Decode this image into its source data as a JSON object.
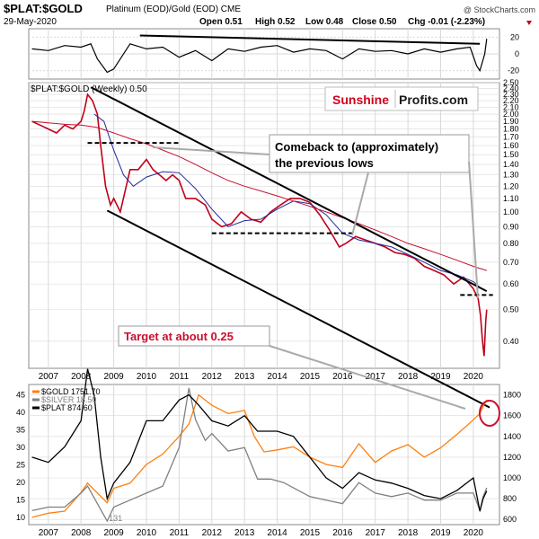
{
  "header": {
    "symbol": "$PLAT:$GOLD",
    "description": "Platinum (EOD)/Gold (EOD) CME",
    "date": "29-May-2020",
    "open": "Open 0.51",
    "high": "High 0.52",
    "low": "Low 0.48",
    "close": "Close 0.50",
    "chg": "Chg -0.01 (-2.23%)",
    "watermark": "@ StockCharts.com"
  },
  "annotations": {
    "brand_red": "Sunshine",
    "brand_blue": "Profits.com",
    "comeback_line1": "Comeback to (approximately)",
    "comeback_line2": "the previous lows",
    "target": "Target at about 0.25"
  },
  "colors": {
    "ratio": "#c0001a",
    "ma_short": "#1f2a9c",
    "ma_long": "#c8102e",
    "gold": "#ff7f0e",
    "silver": "#808080",
    "plat": "#000000",
    "brand_red": "#d0021b",
    "brand_blue": "#1a1a1a",
    "grid": "#d9d9d9"
  },
  "chart_data": [
    {
      "type": "line",
      "panel": "indicator",
      "ylim": [
        -30,
        30
      ],
      "yticks": [
        "20",
        "0",
        "-20"
      ],
      "guide_values": [
        20,
        0,
        -20
      ],
      "x": [
        2006.5,
        2007,
        2007.5,
        2008,
        2008.3,
        2008.5,
        2008.8,
        2009,
        2009.5,
        2010,
        2010.5,
        2011,
        2011.5,
        2012,
        2012.5,
        2013,
        2013.5,
        2014,
        2014.5,
        2015,
        2015.5,
        2016,
        2016.5,
        2017,
        2017.5,
        2018,
        2018.5,
        2019,
        2019.5,
        2019.9,
        2020.1,
        2020.2,
        2020.35,
        2020.41
      ],
      "values": [
        6,
        4,
        10,
        8,
        12,
        -6,
        -22,
        -18,
        12,
        6,
        8,
        -4,
        4,
        -8,
        6,
        3,
        8,
        10,
        2,
        6,
        4,
        -6,
        6,
        3,
        4,
        0,
        6,
        2,
        6,
        8,
        -14,
        -20,
        0,
        18
      ]
    },
    {
      "type": "line",
      "panel": "main",
      "title": "$PLAT:$GOLD (Weekly) 0.50",
      "scale": "log",
      "ylim": [
        0.33,
        2.5
      ],
      "yticks": [
        "2.50",
        "2.40",
        "2.30",
        "2.20",
        "2.10",
        "2.00",
        "1.90",
        "1.80",
        "1.70",
        "1.60",
        "1.50",
        "1.40",
        "1.30",
        "1.20",
        "1.10",
        "1.00",
        "0.90",
        "0.80",
        "0.70",
        "0.60",
        "0.50",
        "0.40"
      ],
      "ytick_values": [
        2.5,
        2.4,
        2.3,
        2.2,
        2.1,
        2.0,
        1.9,
        1.8,
        1.7,
        1.6,
        1.5,
        1.4,
        1.3,
        1.2,
        1.1,
        1.0,
        0.9,
        0.8,
        0.7,
        0.6,
        0.5,
        0.4
      ],
      "xticks": [
        "2007",
        "2008",
        "2009",
        "2010",
        "2011",
        "2012",
        "2013",
        "2014",
        "2015",
        "2016",
        "2017",
        "2018",
        "2019",
        "2020"
      ],
      "xtick_values": [
        2007,
        2008,
        2009,
        2010,
        2011,
        2012,
        2013,
        2014,
        2015,
        2016,
        2017,
        2018,
        2019,
        2020
      ],
      "xlim": [
        2006.4,
        2020.8
      ],
      "series": [
        {
          "key": "ratio",
          "x": [
            2006.5,
            2006.75,
            2007,
            2007.25,
            2007.5,
            2007.75,
            2008,
            2008.1,
            2008.2,
            2008.35,
            2008.5,
            2008.6,
            2008.75,
            2008.9,
            2009,
            2009.2,
            2009.5,
            2009.75,
            2010,
            2010.2,
            2010.4,
            2010.6,
            2010.8,
            2011,
            2011.2,
            2011.5,
            2011.8,
            2012,
            2012.3,
            2012.6,
            2012.9,
            2013.2,
            2013.5,
            2013.8,
            2014.1,
            2014.4,
            2014.7,
            2015,
            2015.3,
            2015.6,
            2015.9,
            2016.1,
            2016.4,
            2016.7,
            2017,
            2017.3,
            2017.6,
            2017.9,
            2018.2,
            2018.5,
            2018.8,
            2019.1,
            2019.4,
            2019.7,
            2020,
            2020.15,
            2020.22,
            2020.28,
            2020.33,
            2020.38,
            2020.41
          ],
          "values": [
            1.9,
            1.85,
            1.8,
            1.75,
            1.85,
            1.8,
            1.9,
            2.05,
            2.3,
            2.2,
            2.0,
            1.6,
            1.2,
            1.05,
            1.1,
            1.0,
            1.35,
            1.35,
            1.45,
            1.35,
            1.3,
            1.25,
            1.3,
            1.25,
            1.1,
            1.1,
            1.05,
            0.95,
            0.9,
            0.92,
            1.0,
            0.95,
            0.93,
            1.0,
            1.05,
            1.1,
            1.1,
            1.07,
            0.98,
            0.88,
            0.78,
            0.8,
            0.84,
            0.82,
            0.8,
            0.78,
            0.75,
            0.74,
            0.72,
            0.68,
            0.66,
            0.64,
            0.6,
            0.63,
            0.58,
            0.54,
            0.48,
            0.4,
            0.36,
            0.46,
            0.5
          ]
        },
        {
          "key": "ma_short",
          "x": [
            2008.4,
            2008.7,
            2009,
            2009.3,
            2009.6,
            2010,
            2010.5,
            2011,
            2011.5,
            2012,
            2012.5,
            2013,
            2013.5,
            2014,
            2014.5,
            2015,
            2015.5,
            2016,
            2016.5,
            2017,
            2017.5,
            2018,
            2018.5,
            2019,
            2019.5,
            2020,
            2020.25
          ],
          "values": [
            2.0,
            1.9,
            1.55,
            1.3,
            1.2,
            1.28,
            1.33,
            1.32,
            1.18,
            1.02,
            0.9,
            0.94,
            0.95,
            1.02,
            1.08,
            1.06,
            0.98,
            0.86,
            0.82,
            0.8,
            0.78,
            0.74,
            0.7,
            0.66,
            0.64,
            0.61,
            0.58
          ]
        },
        {
          "key": "ma_long",
          "x": [
            2006.5,
            2007,
            2007.5,
            2008,
            2008.5,
            2009,
            2009.5,
            2010,
            2010.5,
            2011,
            2011.5,
            2012,
            2012.5,
            2013,
            2013.5,
            2014,
            2014.5,
            2015,
            2015.5,
            2016,
            2016.5,
            2017,
            2017.5,
            2018,
            2018.5,
            2019,
            2019.5,
            2020,
            2020.41
          ],
          "values": [
            1.9,
            1.88,
            1.86,
            1.85,
            1.82,
            1.75,
            1.68,
            1.62,
            1.55,
            1.48,
            1.4,
            1.32,
            1.25,
            1.2,
            1.16,
            1.12,
            1.08,
            1.04,
            1.0,
            0.96,
            0.92,
            0.88,
            0.84,
            0.8,
            0.77,
            0.74,
            0.71,
            0.68,
            0.66
          ]
        }
      ],
      "trend_lines": [
        {
          "key": "upper_channel",
          "x": [
            2008.3,
            2020.41
          ],
          "values": [
            2.42,
            0.57
          ]
        },
        {
          "key": "lower_channel",
          "x": [
            2008.8,
            2020.5
          ],
          "values": [
            1.01,
            0.25
          ]
        },
        {
          "key": "h_line_1",
          "style": "dashed",
          "x": [
            2008.2,
            2011.0
          ],
          "values": [
            1.63,
            1.63
          ]
        },
        {
          "key": "h_line_2",
          "style": "dashed",
          "x": [
            2012.0,
            2016.4
          ],
          "values": [
            0.86,
            0.86
          ]
        },
        {
          "key": "h_line_3",
          "style": "dashed",
          "x": [
            2019.6,
            2020.6
          ],
          "values": [
            0.555,
            0.555
          ]
        }
      ]
    },
    {
      "type": "line",
      "panel": "lower",
      "left_axis": {
        "scale": "linear",
        "ylim": [
          8,
          48
        ],
        "ticks": [
          "45",
          "40",
          "35",
          "30",
          "25",
          "20",
          "15",
          "10"
        ],
        "tick_values": [
          45,
          40,
          35,
          30,
          25,
          20,
          15,
          10
        ]
      },
      "right_axis": {
        "scale": "linear",
        "ylim": [
          550,
          1900
        ],
        "ticks": [
          "1800",
          "1600",
          "1400",
          "1200",
          "1000",
          "800",
          "600"
        ],
        "tick_values": [
          1800,
          1600,
          1400,
          1200,
          1000,
          800,
          600
        ]
      },
      "xticks": [
        "2007",
        "2008",
        "2009",
        "2010",
        "2011",
        "2012",
        "2013",
        "2014",
        "2015",
        "2016",
        "2017",
        "2018",
        "2019",
        "2020"
      ],
      "xtick_values": [
        2007,
        2008,
        2009,
        2010,
        2011,
        2012,
        2013,
        2014,
        2015,
        2016,
        2017,
        2018,
        2019,
        2020
      ],
      "xlim": [
        2006.4,
        2020.8
      ],
      "annotation_131": "131",
      "annotation_131_x": 2008.85,
      "annotation_131_y": 585,
      "series": [
        {
          "name": "$GOLD 1751.70",
          "key": "gold",
          "axis": "right",
          "x": [
            2006.5,
            2007,
            2007.5,
            2008,
            2008.2,
            2008.8,
            2009,
            2009.5,
            2010,
            2010.5,
            2011,
            2011.3,
            2011.6,
            2012,
            2012.5,
            2013,
            2013.3,
            2013.6,
            2014,
            2014.5,
            2015,
            2015.5,
            2016,
            2016.5,
            2017,
            2017.5,
            2018,
            2018.5,
            2019,
            2019.5,
            2020,
            2020.2,
            2020.3,
            2020.41
          ],
          "values": [
            620,
            660,
            680,
            860,
            950,
            760,
            900,
            950,
            1130,
            1230,
            1400,
            1520,
            1800,
            1700,
            1620,
            1650,
            1400,
            1250,
            1270,
            1300,
            1200,
            1130,
            1100,
            1330,
            1150,
            1260,
            1320,
            1200,
            1290,
            1420,
            1560,
            1620,
            1690,
            1751.7
          ]
        },
        {
          "name": "$SILVER 18.50",
          "key": "silver",
          "axis": "left",
          "x": [
            2006.5,
            2007,
            2007.5,
            2008,
            2008.2,
            2008.8,
            2009,
            2009.5,
            2010,
            2010.5,
            2011,
            2011.3,
            2011.5,
            2011.8,
            2012,
            2012.5,
            2013,
            2013.4,
            2013.8,
            2014.2,
            2014.8,
            2015,
            2015.5,
            2016,
            2016.5,
            2017,
            2017.5,
            2018,
            2018.5,
            2019,
            2019.5,
            2020,
            2020.2,
            2020.3,
            2020.41
          ],
          "values": [
            12,
            13,
            13,
            17,
            19,
            9,
            13,
            15,
            17,
            19,
            30,
            47,
            38,
            32,
            34,
            29,
            30,
            21,
            21,
            20,
            17,
            16,
            15,
            14,
            20,
            17,
            16,
            17,
            15,
            15,
            17,
            17,
            12,
            16,
            18.5
          ]
        },
        {
          "name": "$PLAT 874.60",
          "key": "plat",
          "axis": "right",
          "x": [
            2006.5,
            2007,
            2007.5,
            2008,
            2008.2,
            2008.4,
            2008.6,
            2008.8,
            2009,
            2009.5,
            2010,
            2010.5,
            2011,
            2011.3,
            2011.6,
            2012,
            2012.5,
            2013,
            2013.4,
            2014,
            2014.5,
            2015,
            2015.5,
            2016,
            2016.5,
            2017,
            2017.5,
            2018,
            2018.5,
            2019,
            2019.5,
            2020,
            2020.2,
            2020.3,
            2020.41
          ],
          "values": [
            1200,
            1150,
            1300,
            1550,
            2050,
            1800,
            1200,
            800,
            950,
            1150,
            1550,
            1550,
            1750,
            1800,
            1700,
            1550,
            1500,
            1600,
            1450,
            1450,
            1400,
            1200,
            1000,
            900,
            1050,
            980,
            950,
            900,
            830,
            800,
            880,
            1000,
            680,
            800,
            874.6
          ]
        }
      ]
    }
  ]
}
